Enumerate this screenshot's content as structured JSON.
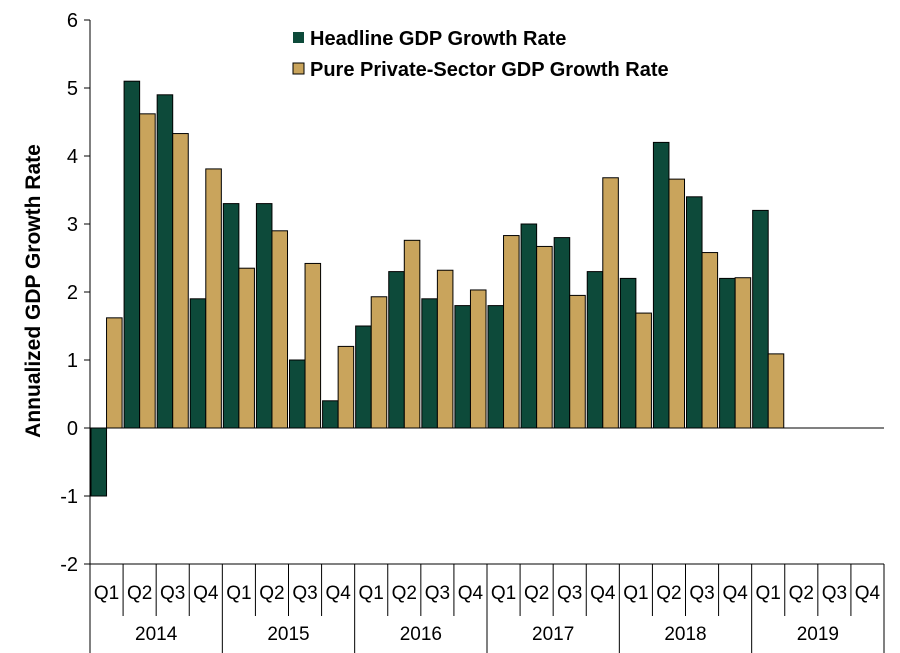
{
  "chart_data": {
    "type": "bar",
    "ylabel": "Annualized GDP Growth Rate",
    "xlabel": "",
    "ylim": [
      -2,
      6
    ],
    "yticks": [
      -2,
      -1,
      0,
      1,
      2,
      3,
      4,
      5,
      6
    ],
    "legend_position": "top-center",
    "grid": false,
    "years": [
      "2014",
      "2015",
      "2016",
      "2017",
      "2018",
      "2019"
    ],
    "quarters": [
      "Q1",
      "Q2",
      "Q3",
      "Q4"
    ],
    "series": [
      {
        "name": "Headline GDP Growth Rate",
        "color": "#0d4a3a",
        "values": [
          -1.0,
          5.1,
          4.9,
          1.9,
          3.3,
          3.3,
          1.0,
          0.4,
          1.5,
          2.3,
          1.9,
          1.8,
          1.8,
          3.0,
          2.8,
          2.3,
          2.2,
          4.2,
          3.4,
          2.2,
          3.2,
          null,
          null,
          null
        ]
      },
      {
        "name": "Pure Private-Sector GDP Growth Rate",
        "color": "#c9a45c",
        "values": [
          1.62,
          4.62,
          4.33,
          3.81,
          2.35,
          2.9,
          2.42,
          1.2,
          1.93,
          2.76,
          2.32,
          2.03,
          2.83,
          2.67,
          1.95,
          3.68,
          1.69,
          3.66,
          2.58,
          2.21,
          1.09,
          null,
          null,
          null
        ]
      }
    ]
  }
}
